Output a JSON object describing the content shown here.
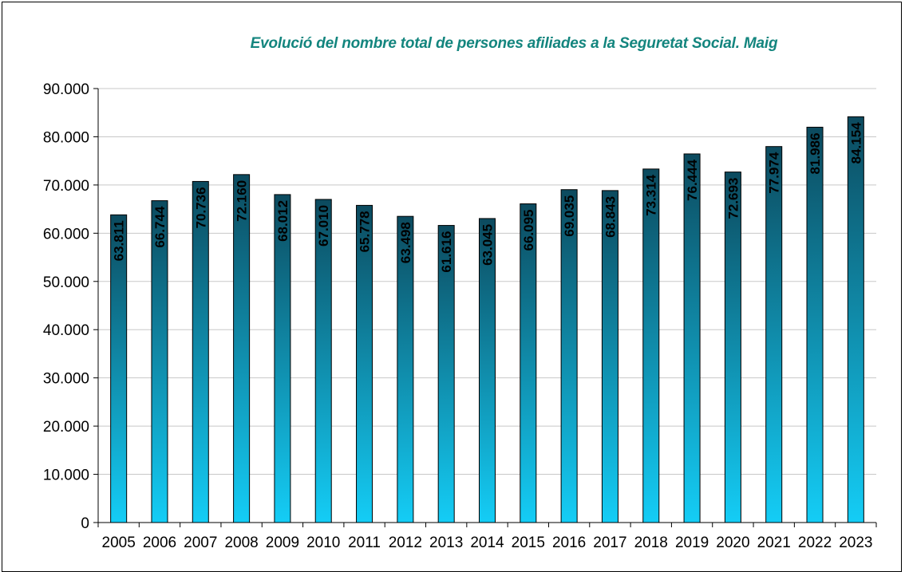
{
  "chart_data": {
    "type": "bar",
    "title": "Evolució del nombre total de persones afiliades a la Seguretat Social. Maig",
    "xlabel": "",
    "ylabel": "",
    "categories": [
      "2005",
      "2006",
      "2007",
      "2008",
      "2009",
      "2010",
      "2011",
      "2012",
      "2013",
      "2014",
      "2015",
      "2016",
      "2017",
      "2018",
      "2019",
      "2020",
      "2021",
      "2022",
      "2023"
    ],
    "values": [
      63811,
      66744,
      70736,
      72160,
      68012,
      67010,
      65778,
      63498,
      61616,
      63045,
      66095,
      69035,
      68843,
      73314,
      76444,
      72693,
      77974,
      81986,
      84154
    ],
    "value_labels": [
      "63.811",
      "66.744",
      "70.736",
      "72.160",
      "68.012",
      "67.010",
      "65.778",
      "63.498",
      "61.616",
      "63.045",
      "66.095",
      "69.035",
      "68.843",
      "73.314",
      "76.444",
      "72.693",
      "77.974",
      "81.986",
      "84.154"
    ],
    "ylim": [
      0,
      90000
    ],
    "yticks": [
      0,
      10000,
      20000,
      30000,
      40000,
      50000,
      60000,
      70000,
      80000,
      90000
    ],
    "ytick_labels": [
      "0",
      "10.000",
      "20.000",
      "30.000",
      "40.000",
      "50.000",
      "60.000",
      "70.000",
      "80.000",
      "90.000"
    ],
    "grid": true,
    "legend": "none",
    "colors": {
      "bar_top": "#0c4a5e",
      "bar_bottom": "#14cdf6",
      "title": "#13857e",
      "grid": "#c8c8c8"
    }
  }
}
